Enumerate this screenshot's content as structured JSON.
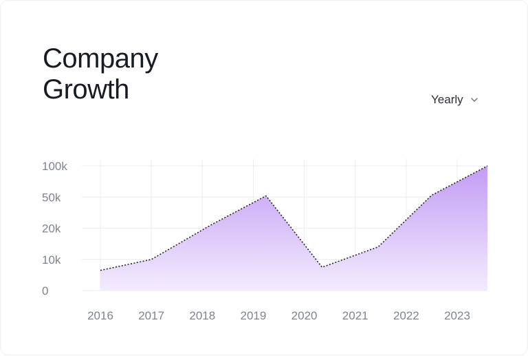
{
  "card": {
    "title_line1": "Company",
    "title_line2": "Growth",
    "period_select": {
      "value": "Yearly",
      "icon": "chevron-down-icon"
    }
  },
  "colors": {
    "area_top": "#c29cf5",
    "area_bottom": "#f3ecfd",
    "line": "#1f1f2e",
    "grid": "#ececf1",
    "tick": "#7e8490",
    "title": "#171b24"
  },
  "chart_data": {
    "type": "area",
    "title": "",
    "xlabel": "",
    "ylabel": "",
    "x_ticks": [
      "2016",
      "2017",
      "2018",
      "2019",
      "2020",
      "2021",
      "2022",
      "2023"
    ],
    "y_ticks": [
      "0",
      "10k",
      "20k",
      "50k",
      "100k"
    ],
    "y_tick_values": [
      0,
      10000,
      20000,
      50000,
      100000
    ],
    "y_scale": "categorical-ordinal",
    "x": [
      2016,
      2017,
      2018.2,
      2019.25,
      2020.35,
      2021.45,
      2022.5,
      2023.6
    ],
    "series": [
      {
        "values": [
          6500,
          10000,
          24000,
          52000,
          7500,
          14000,
          53000,
          100000
        ]
      }
    ],
    "line_style": "dotted",
    "fill": "gradient",
    "grid": true,
    "legend": "none"
  }
}
